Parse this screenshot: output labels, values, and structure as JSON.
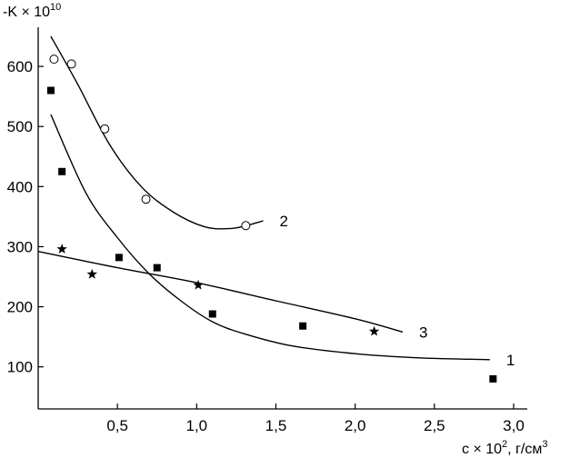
{
  "chart_data": {
    "type": "scatter",
    "ylabel": {
      "prefix": "-K × 10",
      "sup": "10"
    },
    "xlabel": {
      "prefix": "c × 10",
      "sup1": "2",
      "mid": ", г/см",
      "sup2": "3"
    },
    "xlim": [
      0,
      3.0
    ],
    "ylim": [
      30,
      650
    ],
    "x_ticks": [
      {
        "value": 0.5,
        "label": "0,5"
      },
      {
        "value": 1.0,
        "label": "1,0"
      },
      {
        "value": 1.5,
        "label": "1,5"
      },
      {
        "value": 2.0,
        "label": "2,0"
      },
      {
        "value": 2.5,
        "label": "2,5"
      },
      {
        "value": 3.0,
        "label": "3,0"
      }
    ],
    "y_ticks": [
      {
        "value": 100,
        "label": "100"
      },
      {
        "value": 200,
        "label": "200"
      },
      {
        "value": 300,
        "label": "300"
      },
      {
        "value": 400,
        "label": "400"
      },
      {
        "value": 500,
        "label": "500"
      },
      {
        "value": 600,
        "label": "600"
      }
    ],
    "grid": false,
    "series": [
      {
        "label": "1",
        "marker": "square",
        "points": [
          [
            0.08,
            560
          ],
          [
            0.15,
            425
          ],
          [
            0.51,
            282
          ],
          [
            0.75,
            265
          ],
          [
            1.1,
            188
          ],
          [
            1.67,
            168
          ],
          [
            2.87,
            80
          ]
        ],
        "curve": [
          [
            0.08,
            520
          ],
          [
            0.3,
            390
          ],
          [
            0.5,
            315
          ],
          [
            0.7,
            255
          ],
          [
            0.9,
            210
          ],
          [
            1.1,
            175
          ],
          [
            1.3,
            155
          ],
          [
            1.6,
            135
          ],
          [
            2.0,
            122
          ],
          [
            2.4,
            115
          ],
          [
            2.85,
            112
          ]
        ]
      },
      {
        "label": "2",
        "marker": "circle",
        "points": [
          [
            0.1,
            612
          ],
          [
            0.21,
            604
          ],
          [
            0.42,
            496
          ],
          [
            0.68,
            379
          ],
          [
            1.31,
            335
          ]
        ],
        "curve": [
          [
            0.08,
            650
          ],
          [
            0.25,
            570
          ],
          [
            0.45,
            470
          ],
          [
            0.65,
            400
          ],
          [
            0.85,
            358
          ],
          [
            1.05,
            333
          ],
          [
            1.2,
            330
          ],
          [
            1.3,
            334
          ],
          [
            1.42,
            343
          ]
        ]
      },
      {
        "label": "3",
        "marker": "star",
        "points": [
          [
            0.15,
            296
          ],
          [
            0.34,
            254
          ],
          [
            1.01,
            236
          ],
          [
            2.12,
            159
          ]
        ],
        "curve": [
          [
            0.0,
            292
          ],
          [
            0.5,
            265
          ],
          [
            1.0,
            240
          ],
          [
            1.5,
            210
          ],
          [
            2.0,
            180
          ],
          [
            2.3,
            158
          ]
        ]
      }
    ]
  }
}
